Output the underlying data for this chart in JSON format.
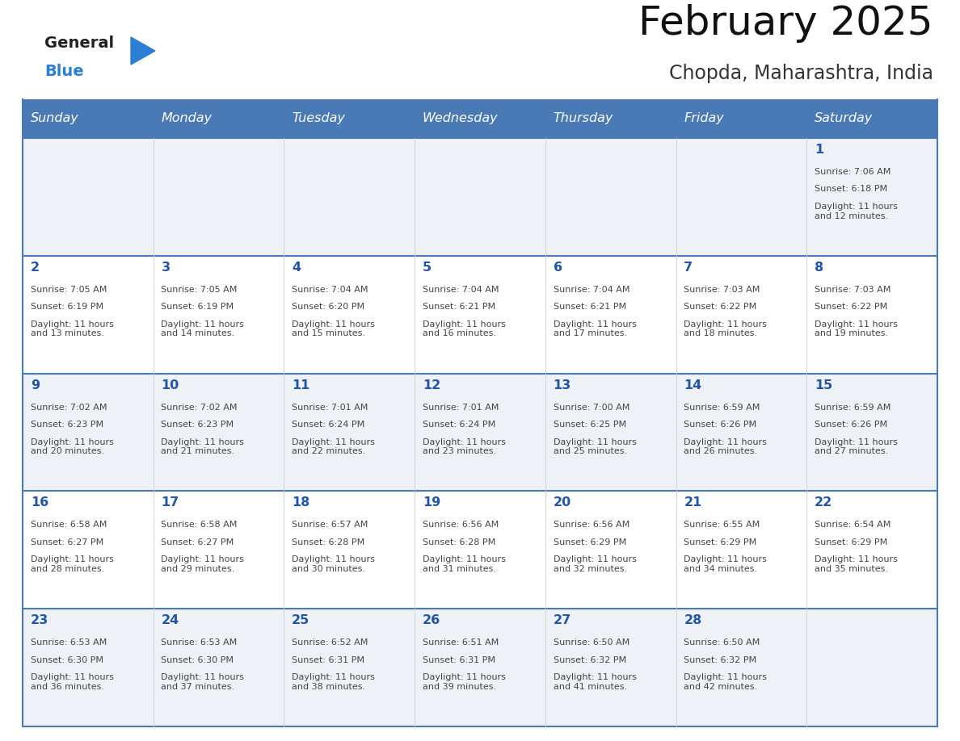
{
  "title": "February 2025",
  "subtitle": "Chopda, Maharashtra, India",
  "days_of_week": [
    "Sunday",
    "Monday",
    "Tuesday",
    "Wednesday",
    "Thursday",
    "Friday",
    "Saturday"
  ],
  "header_bg": "#4a7ab5",
  "header_text": "#ffffff",
  "row_bg_odd": "#eef2f7",
  "row_bg_even": "#ffffff",
  "day_number_color": "#2255aa",
  "text_color": "#444444",
  "border_color": "#4a7ab5",
  "sep_color": "#cccccc",
  "calendar_data": [
    {
      "day": 1,
      "col": 6,
      "row": 0,
      "sunrise": "7:06 AM",
      "sunset": "6:18 PM",
      "daylight": "11 hours\nand 12 minutes."
    },
    {
      "day": 2,
      "col": 0,
      "row": 1,
      "sunrise": "7:05 AM",
      "sunset": "6:19 PM",
      "daylight": "11 hours\nand 13 minutes."
    },
    {
      "day": 3,
      "col": 1,
      "row": 1,
      "sunrise": "7:05 AM",
      "sunset": "6:19 PM",
      "daylight": "11 hours\nand 14 minutes."
    },
    {
      "day": 4,
      "col": 2,
      "row": 1,
      "sunrise": "7:04 AM",
      "sunset": "6:20 PM",
      "daylight": "11 hours\nand 15 minutes."
    },
    {
      "day": 5,
      "col": 3,
      "row": 1,
      "sunrise": "7:04 AM",
      "sunset": "6:21 PM",
      "daylight": "11 hours\nand 16 minutes."
    },
    {
      "day": 6,
      "col": 4,
      "row": 1,
      "sunrise": "7:04 AM",
      "sunset": "6:21 PM",
      "daylight": "11 hours\nand 17 minutes."
    },
    {
      "day": 7,
      "col": 5,
      "row": 1,
      "sunrise": "7:03 AM",
      "sunset": "6:22 PM",
      "daylight": "11 hours\nand 18 minutes."
    },
    {
      "day": 8,
      "col": 6,
      "row": 1,
      "sunrise": "7:03 AM",
      "sunset": "6:22 PM",
      "daylight": "11 hours\nand 19 minutes."
    },
    {
      "day": 9,
      "col": 0,
      "row": 2,
      "sunrise": "7:02 AM",
      "sunset": "6:23 PM",
      "daylight": "11 hours\nand 20 minutes."
    },
    {
      "day": 10,
      "col": 1,
      "row": 2,
      "sunrise": "7:02 AM",
      "sunset": "6:23 PM",
      "daylight": "11 hours\nand 21 minutes."
    },
    {
      "day": 11,
      "col": 2,
      "row": 2,
      "sunrise": "7:01 AM",
      "sunset": "6:24 PM",
      "daylight": "11 hours\nand 22 minutes."
    },
    {
      "day": 12,
      "col": 3,
      "row": 2,
      "sunrise": "7:01 AM",
      "sunset": "6:24 PM",
      "daylight": "11 hours\nand 23 minutes."
    },
    {
      "day": 13,
      "col": 4,
      "row": 2,
      "sunrise": "7:00 AM",
      "sunset": "6:25 PM",
      "daylight": "11 hours\nand 25 minutes."
    },
    {
      "day": 14,
      "col": 5,
      "row": 2,
      "sunrise": "6:59 AM",
      "sunset": "6:26 PM",
      "daylight": "11 hours\nand 26 minutes."
    },
    {
      "day": 15,
      "col": 6,
      "row": 2,
      "sunrise": "6:59 AM",
      "sunset": "6:26 PM",
      "daylight": "11 hours\nand 27 minutes."
    },
    {
      "day": 16,
      "col": 0,
      "row": 3,
      "sunrise": "6:58 AM",
      "sunset": "6:27 PM",
      "daylight": "11 hours\nand 28 minutes."
    },
    {
      "day": 17,
      "col": 1,
      "row": 3,
      "sunrise": "6:58 AM",
      "sunset": "6:27 PM",
      "daylight": "11 hours\nand 29 minutes."
    },
    {
      "day": 18,
      "col": 2,
      "row": 3,
      "sunrise": "6:57 AM",
      "sunset": "6:28 PM",
      "daylight": "11 hours\nand 30 minutes."
    },
    {
      "day": 19,
      "col": 3,
      "row": 3,
      "sunrise": "6:56 AM",
      "sunset": "6:28 PM",
      "daylight": "11 hours\nand 31 minutes."
    },
    {
      "day": 20,
      "col": 4,
      "row": 3,
      "sunrise": "6:56 AM",
      "sunset": "6:29 PM",
      "daylight": "11 hours\nand 32 minutes."
    },
    {
      "day": 21,
      "col": 5,
      "row": 3,
      "sunrise": "6:55 AM",
      "sunset": "6:29 PM",
      "daylight": "11 hours\nand 34 minutes."
    },
    {
      "day": 22,
      "col": 6,
      "row": 3,
      "sunrise": "6:54 AM",
      "sunset": "6:29 PM",
      "daylight": "11 hours\nand 35 minutes."
    },
    {
      "day": 23,
      "col": 0,
      "row": 4,
      "sunrise": "6:53 AM",
      "sunset": "6:30 PM",
      "daylight": "11 hours\nand 36 minutes."
    },
    {
      "day": 24,
      "col": 1,
      "row": 4,
      "sunrise": "6:53 AM",
      "sunset": "6:30 PM",
      "daylight": "11 hours\nand 37 minutes."
    },
    {
      "day": 25,
      "col": 2,
      "row": 4,
      "sunrise": "6:52 AM",
      "sunset": "6:31 PM",
      "daylight": "11 hours\nand 38 minutes."
    },
    {
      "day": 26,
      "col": 3,
      "row": 4,
      "sunrise": "6:51 AM",
      "sunset": "6:31 PM",
      "daylight": "11 hours\nand 39 minutes."
    },
    {
      "day": 27,
      "col": 4,
      "row": 4,
      "sunrise": "6:50 AM",
      "sunset": "6:32 PM",
      "daylight": "11 hours\nand 41 minutes."
    },
    {
      "day": 28,
      "col": 5,
      "row": 4,
      "sunrise": "6:50 AM",
      "sunset": "6:32 PM",
      "daylight": "11 hours\nand 42 minutes."
    }
  ]
}
